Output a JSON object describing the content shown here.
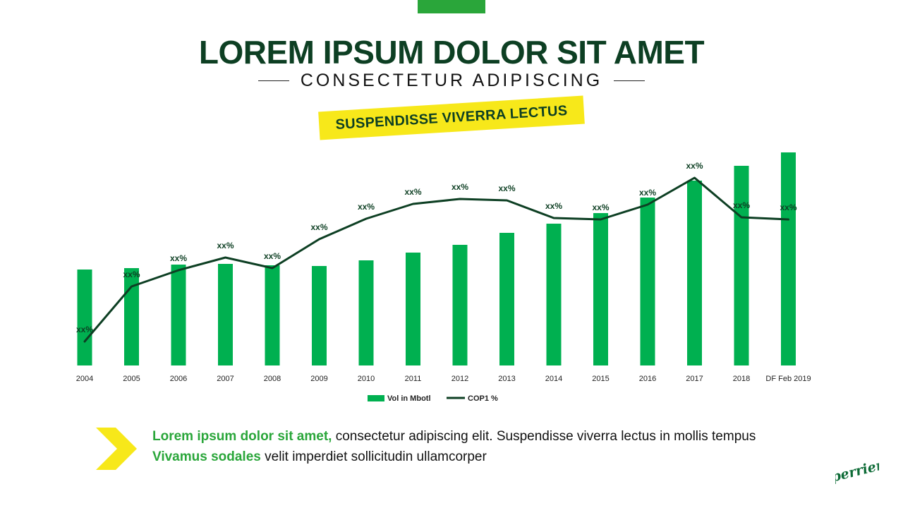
{
  "header": {
    "title": "LOREM IPSUM DOLOR SIT AMET",
    "subtitle": "CONSECTETUR ADIPISCING",
    "banner": "SUSPENDISSE VIVERRA LECTUS"
  },
  "chart_data": {
    "type": "bar",
    "categories": [
      "2004",
      "2005",
      "2006",
      "2007",
      "2008",
      "2009",
      "2010",
      "2011",
      "2012",
      "2013",
      "2014",
      "2015",
      "2016",
      "2017",
      "2018",
      "DF Feb 2019"
    ],
    "series": [
      {
        "name": "Vol in Mbotl",
        "type": "bar",
        "color": "#00b050",
        "values": [
          136,
          138,
          143,
          144,
          142,
          141,
          149,
          160,
          171,
          188,
          201,
          216,
          238,
          262,
          283,
          302
        ]
      },
      {
        "name": "COP1 %",
        "type": "line",
        "color": "#0d3f23",
        "values": [
          34,
          112,
          135,
          153,
          138,
          179,
          208,
          229,
          236,
          234,
          209,
          207,
          228,
          266,
          210,
          207
        ],
        "data_labels": [
          "xx%",
          "xx%",
          "xx%",
          "xx%",
          "xx%",
          "xx%",
          "xx%",
          "xx%",
          "xx%",
          "xx%",
          "xx%",
          "xx%",
          "xx%",
          "xx%",
          "xx%",
          "xx%"
        ]
      }
    ],
    "ylim": [
      0,
      310
    ],
    "grid": false,
    "axes_visible": false,
    "legend": "bottom-center"
  },
  "footer": {
    "line1_highlight": "Lorem ipsum dolor sit amet,",
    "line1_rest": " consectetur adipiscing elit. Suspendisse viverra lectus in mollis tempus",
    "line2_highlight": "Vivamus sodales",
    "line2_rest": " velit imperdiet sollicitudin ullamcorper"
  },
  "logo": {
    "text": "perrier",
    "icon": "perrier-logo"
  },
  "colors": {
    "dark_green": "#0d3f23",
    "bright_green": "#00b050",
    "accent_green": "#2aa63a",
    "yellow": "#f7e81a"
  }
}
